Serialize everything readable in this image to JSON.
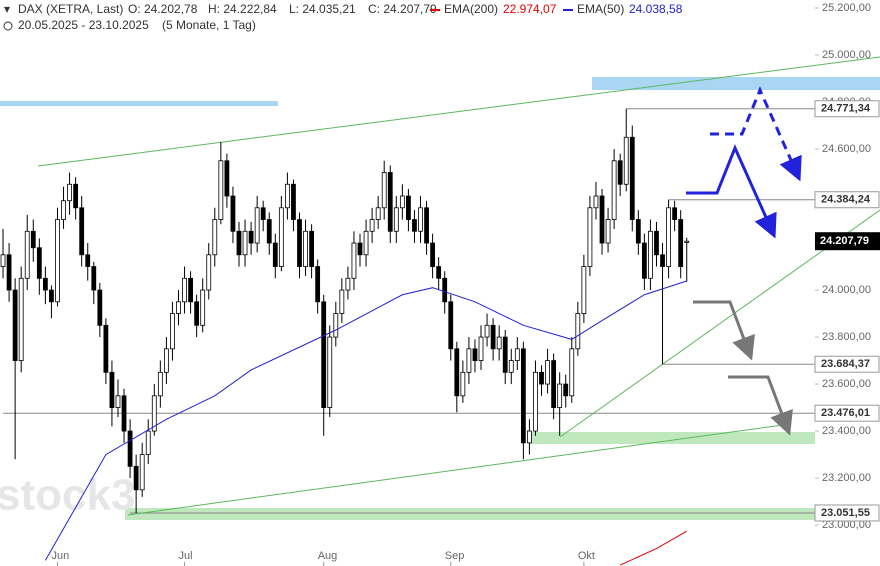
{
  "chart_data": {
    "type": "candlestick",
    "header": {
      "instrument": "DAX (XETRA, Last)",
      "open": "O: 24.202,78",
      "high": "H: 24.222,84",
      "low": "L: 24.035,21",
      "close": "C: 24.207,79",
      "range": "20.05.2025 - 23.10.2025",
      "period": "(5 Monate, 1 Tag)"
    },
    "watermark": "stock3",
    "ohlc": [
      [
        24100,
        24260,
        24050,
        24150
      ],
      [
        24150,
        24200,
        23950,
        24000
      ],
      [
        24000,
        24050,
        23280,
        23700
      ],
      [
        23700,
        24100,
        23650,
        24050
      ],
      [
        24050,
        24320,
        24000,
        24250
      ],
      [
        24250,
        24300,
        24120,
        24180
      ],
      [
        24180,
        24220,
        23980,
        24050
      ],
      [
        24050,
        24100,
        23940,
        24000
      ],
      [
        24000,
        24020,
        23880,
        23950
      ],
      [
        23950,
        24350,
        23930,
        24300
      ],
      [
        24300,
        24440,
        24260,
        24380
      ],
      [
        24380,
        24500,
        24320,
        24450
      ],
      [
        24450,
        24480,
        24300,
        24350
      ],
      [
        24350,
        24400,
        24100,
        24150
      ],
      [
        24150,
        24200,
        24040,
        24100
      ],
      [
        24100,
        24120,
        23940,
        24000
      ],
      [
        24000,
        24030,
        23800,
        23850
      ],
      [
        23850,
        23880,
        23600,
        23650
      ],
      [
        23650,
        23700,
        23420,
        23500
      ],
      [
        23500,
        23620,
        23460,
        23550
      ],
      [
        23550,
        23580,
        23350,
        23400
      ],
      [
        23400,
        23450,
        23200,
        23250
      ],
      [
        23250,
        23300,
        23051.55,
        23150
      ],
      [
        23150,
        23350,
        23120,
        23300
      ],
      [
        23300,
        23450,
        23260,
        23400
      ],
      [
        23400,
        23600,
        23380,
        23550
      ],
      [
        23550,
        23700,
        23500,
        23650
      ],
      [
        23650,
        23800,
        23600,
        23750
      ],
      [
        23750,
        23950,
        23700,
        23900
      ],
      [
        23900,
        24000,
        23850,
        23950
      ],
      [
        23950,
        24100,
        23900,
        24050
      ],
      [
        24050,
        24080,
        23900,
        23950
      ],
      [
        23950,
        23980,
        23800,
        23850
      ],
      [
        23850,
        24050,
        23820,
        24000
      ],
      [
        24000,
        24200,
        23960,
        24150
      ],
      [
        24150,
        24350,
        24100,
        24300
      ],
      [
        24300,
        24630,
        24280,
        24550
      ],
      [
        24550,
        24580,
        24350,
        24400
      ],
      [
        24400,
        24440,
        24200,
        24250
      ],
      [
        24250,
        24290,
        24100,
        24150
      ],
      [
        24150,
        24300,
        24100,
        24250
      ],
      [
        24250,
        24290,
        24150,
        24200
      ],
      [
        24200,
        24400,
        24160,
        24350
      ],
      [
        24350,
        24380,
        24250,
        24300
      ],
      [
        24300,
        24330,
        24150,
        24200
      ],
      [
        24200,
        24240,
        24050,
        24100
      ],
      [
        24100,
        24400,
        24080,
        24350
      ],
      [
        24350,
        24500,
        24300,
        24450
      ],
      [
        24450,
        24470,
        24250,
        24300
      ],
      [
        24300,
        24330,
        24050,
        24100
      ],
      [
        24100,
        24300,
        24060,
        24250
      ],
      [
        24250,
        24280,
        24050,
        24100
      ],
      [
        24100,
        24130,
        23900,
        23950
      ],
      [
        23950,
        23980,
        23380,
        23500
      ],
      [
        23500,
        23850,
        23460,
        23800
      ],
      [
        23800,
        23950,
        23760,
        23900
      ],
      [
        23900,
        24050,
        23860,
        24000
      ],
      [
        24000,
        24100,
        23960,
        24050
      ],
      [
        24050,
        24250,
        24000,
        24200
      ],
      [
        24200,
        24240,
        24100,
        24150
      ],
      [
        24150,
        24300,
        24100,
        24250
      ],
      [
        24250,
        24350,
        24200,
        24300
      ],
      [
        24300,
        24400,
        24260,
        24350
      ],
      [
        24350,
        24550,
        24300,
        24500
      ],
      [
        24500,
        24530,
        24200,
        24250
      ],
      [
        24250,
        24400,
        24200,
        24350
      ],
      [
        24350,
        24450,
        24300,
        24400
      ],
      [
        24400,
        24430,
        24250,
        24300
      ],
      [
        24300,
        24340,
        24200,
        24250
      ],
      [
        24250,
        24400,
        24200,
        24350
      ],
      [
        24350,
        24380,
        24150,
        24200
      ],
      [
        24200,
        24240,
        24050,
        24100
      ],
      [
        24100,
        24140,
        24000,
        24050
      ],
      [
        24050,
        24080,
        23900,
        23950
      ],
      [
        23950,
        23980,
        23700,
        23750
      ],
      [
        23750,
        23780,
        23480,
        23550
      ],
      [
        23550,
        23700,
        23520,
        23650
      ],
      [
        23650,
        23800,
        23600,
        23750
      ],
      [
        23750,
        23790,
        23650,
        23700
      ],
      [
        23700,
        23850,
        23660,
        23800
      ],
      [
        23800,
        23900,
        23760,
        23850
      ],
      [
        23850,
        23880,
        23700,
        23750
      ],
      [
        23750,
        23850,
        23700,
        23800
      ],
      [
        23800,
        23830,
        23600,
        23650
      ],
      [
        23650,
        23750,
        23600,
        23700
      ],
      [
        23700,
        23800,
        23660,
        23750
      ],
      [
        23750,
        23780,
        23280,
        23350
      ],
      [
        23350,
        23450,
        23300,
        23400
      ],
      [
        23400,
        23700,
        23380,
        23650
      ],
      [
        23650,
        23680,
        23550,
        23600
      ],
      [
        23600,
        23750,
        23560,
        23700
      ],
      [
        23700,
        23730,
        23450,
        23500
      ],
      [
        23500,
        23650,
        23380,
        23600
      ],
      [
        23600,
        23640,
        23500,
        23550
      ],
      [
        23550,
        23800,
        23520,
        23750
      ],
      [
        23750,
        23950,
        23720,
        23900
      ],
      [
        23900,
        24150,
        23860,
        24100
      ],
      [
        24100,
        24400,
        24060,
        24350
      ],
      [
        24350,
        24460,
        24300,
        24400
      ],
      [
        24400,
        24430,
        24150,
        24200
      ],
      [
        24200,
        24350,
        24160,
        24300
      ],
      [
        24300,
        24600,
        24260,
        24550
      ],
      [
        24550,
        24580,
        24400,
        24450
      ],
      [
        24450,
        24771.34,
        24420,
        24650
      ],
      [
        24650,
        24700,
        24250,
        24300
      ],
      [
        24300,
        24340,
        24150,
        24200
      ],
      [
        24200,
        24240,
        24000,
        24050
      ],
      [
        24050,
        24300,
        24000,
        24250
      ],
      [
        24250,
        24290,
        24100,
        24150
      ],
      [
        24150,
        24200,
        23684.37,
        24100
      ],
      [
        24100,
        24384.24,
        24050,
        24350
      ],
      [
        24350,
        24380,
        24250,
        24300
      ],
      [
        24300,
        24340,
        24050,
        24100
      ],
      [
        24202.78,
        24222.84,
        24035.21,
        24207.79
      ]
    ],
    "series": [
      {
        "name": "EMA(200)",
        "color": "#e00000",
        "last_label": "22.974,07",
        "x": [
          102,
          108,
          113
        ],
        "values": [
          22830,
          22900,
          22974.07
        ]
      },
      {
        "name": "EMA(50)",
        "color": "#2222cc",
        "last_label": "24.038,58",
        "x": [
          7,
          17,
          27,
          35,
          41,
          55,
          66,
          71,
          78,
          86,
          94,
          99,
          106,
          113
        ],
        "values": [
          22850,
          23300,
          23450,
          23550,
          23660,
          23830,
          23980,
          24010,
          23950,
          23850,
          23790,
          23870,
          23980,
          24038.58
        ]
      }
    ],
    "xlim": [
      -0.5,
      134.2
    ],
    "xticks": [
      {
        "value": 9,
        "label": "Jun"
      },
      {
        "value": 30,
        "label": "Jul"
      },
      {
        "value": 53,
        "label": "Aug"
      },
      {
        "value": 74,
        "label": "Sep"
      },
      {
        "value": 96,
        "label": "Okt"
      }
    ],
    "ylim": [
      22826,
      25234
    ],
    "yticks": [
      {
        "value": 23000,
        "label": "23.000,00"
      },
      {
        "value": 23200,
        "label": "23.200,00"
      },
      {
        "value": 23400,
        "label": "23.400,00"
      },
      {
        "value": 23600,
        "label": "23.600,00"
      },
      {
        "value": 23800,
        "label": "23.800,00"
      },
      {
        "value": 24000,
        "label": "24.000,00"
      },
      {
        "value": 24200,
        "label": "24.200,00"
      },
      {
        "value": 24400,
        "label": "24.400,00"
      },
      {
        "value": 24600,
        "label": "24.600,00"
      },
      {
        "value": 24800,
        "label": "24.800,00"
      },
      {
        "value": 25000,
        "label": "25.000,00"
      },
      {
        "value": 25200,
        "label": "25.200,00"
      }
    ],
    "levels": [
      {
        "value": 24771.34,
        "label": "24.771,34",
        "from": 103
      },
      {
        "value": 24384.24,
        "label": "24.384,24",
        "from": 110
      },
      {
        "value": 23684.37,
        "label": "23.684,37",
        "from": 109
      },
      {
        "value": 23476.01,
        "label": "23.476,01",
        "from": 0
      },
      {
        "value": 23051.55,
        "label": "23.051,55",
        "from": 21
      }
    ],
    "last_price": {
      "value": 24207.79,
      "label": "24.207,79"
    }
  }
}
